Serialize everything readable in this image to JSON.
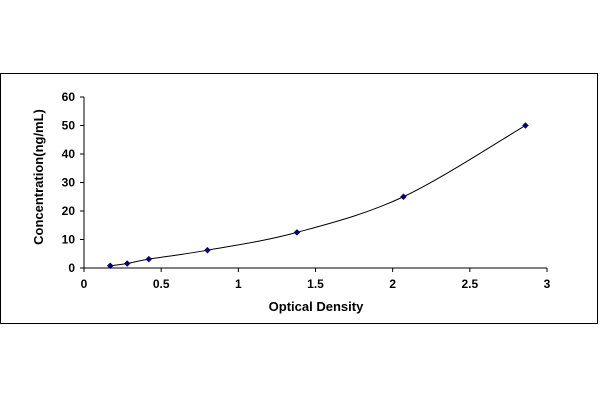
{
  "chart_data": {
    "type": "scatter",
    "title": "",
    "xlabel": "Optical Density",
    "ylabel": "Concentration(ng/mL)",
    "xlim": [
      0,
      3
    ],
    "ylim": [
      0,
      60
    ],
    "xticks": [
      0,
      0.5,
      1,
      1.5,
      2,
      2.5,
      3
    ],
    "xtick_labels": [
      "0",
      "0.5",
      "1",
      "1.5",
      "2",
      "2.5",
      "3"
    ],
    "yticks": [
      0,
      10,
      20,
      30,
      40,
      50,
      60
    ],
    "ytick_labels": [
      "0",
      "10",
      "20",
      "30",
      "40",
      "50",
      "60"
    ],
    "grid": false,
    "legend": "none",
    "smoothed_line": true,
    "series": [
      {
        "x": [
          0.17,
          0.28,
          0.42,
          0.8,
          1.38,
          2.07,
          2.86
        ],
        "y": [
          0.78,
          1.56,
          3.12,
          6.25,
          12.5,
          25,
          50
        ],
        "color": "#00006e",
        "line_color": "#000000"
      }
    ]
  }
}
